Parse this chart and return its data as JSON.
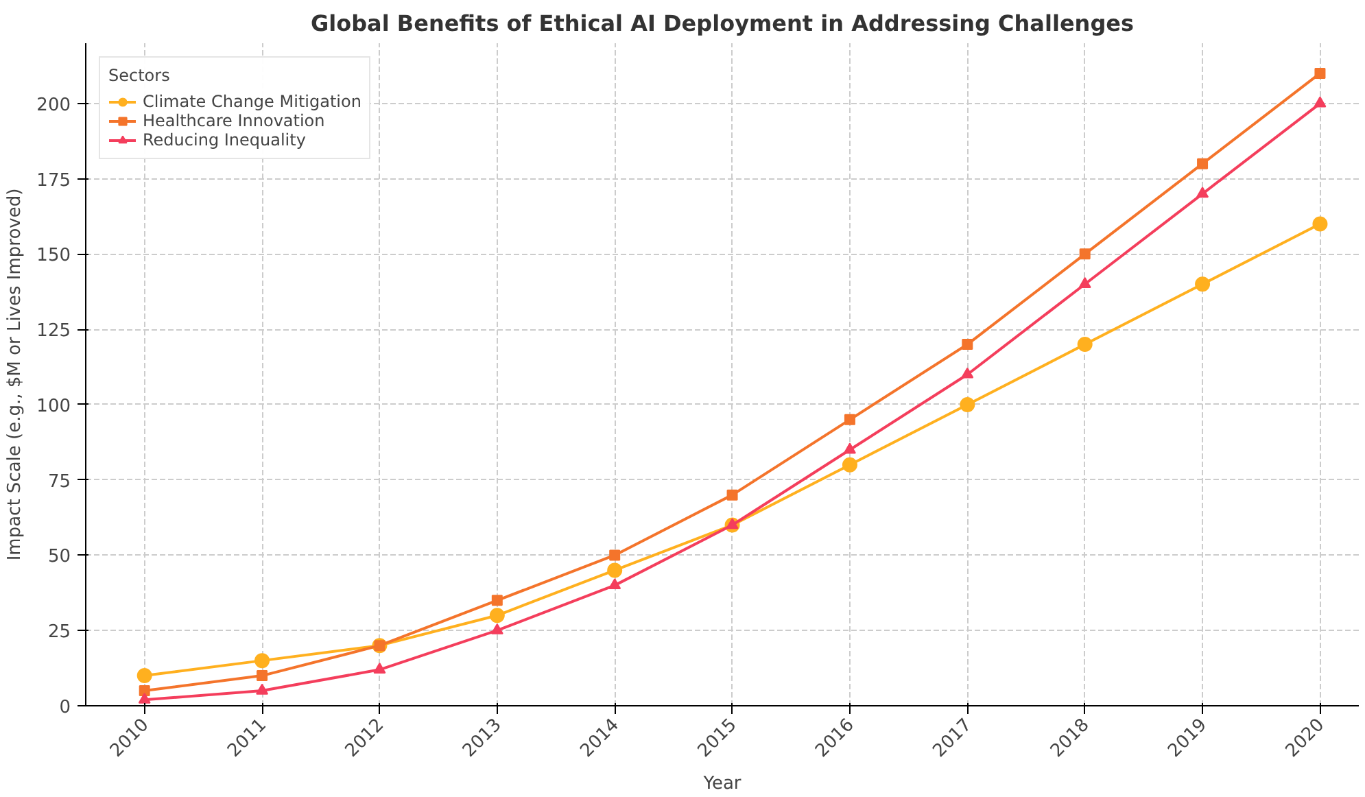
{
  "chart_data": {
    "type": "line",
    "title": "Global Benefits of Ethical AI Deployment in Addressing Challenges",
    "xlabel": "Year",
    "ylabel": "Impact Scale (e.g., $M or Lives Improved)",
    "legend_title": "Sectors",
    "x": [
      2010,
      2011,
      2012,
      2013,
      2014,
      2015,
      2016,
      2017,
      2018,
      2019,
      2020
    ],
    "series": [
      {
        "name": "Climate Change Mitigation",
        "color": "#ffb01f",
        "marker": "circle",
        "values": [
          10,
          15,
          20,
          30,
          45,
          60,
          80,
          100,
          120,
          140,
          160
        ]
      },
      {
        "name": "Healthcare Innovation",
        "color": "#f4742b",
        "marker": "square",
        "values": [
          5,
          10,
          20,
          35,
          50,
          70,
          95,
          120,
          150,
          180,
          210
        ]
      },
      {
        "name": "Reducing Inequality",
        "color": "#f43e5c",
        "marker": "triangle",
        "values": [
          2,
          5,
          12,
          25,
          40,
          60,
          85,
          110,
          140,
          170,
          200
        ]
      }
    ],
    "xlim": [
      2009.5,
      2020.33
    ],
    "ylim": [
      0,
      220
    ],
    "xticks": [
      2010,
      2011,
      2012,
      2013,
      2014,
      2015,
      2016,
      2017,
      2018,
      2019,
      2020
    ],
    "yticks": [
      0,
      25,
      50,
      75,
      100,
      125,
      150,
      175,
      200
    ],
    "grid": true,
    "legend": "top left",
    "line_style": "solid"
  }
}
